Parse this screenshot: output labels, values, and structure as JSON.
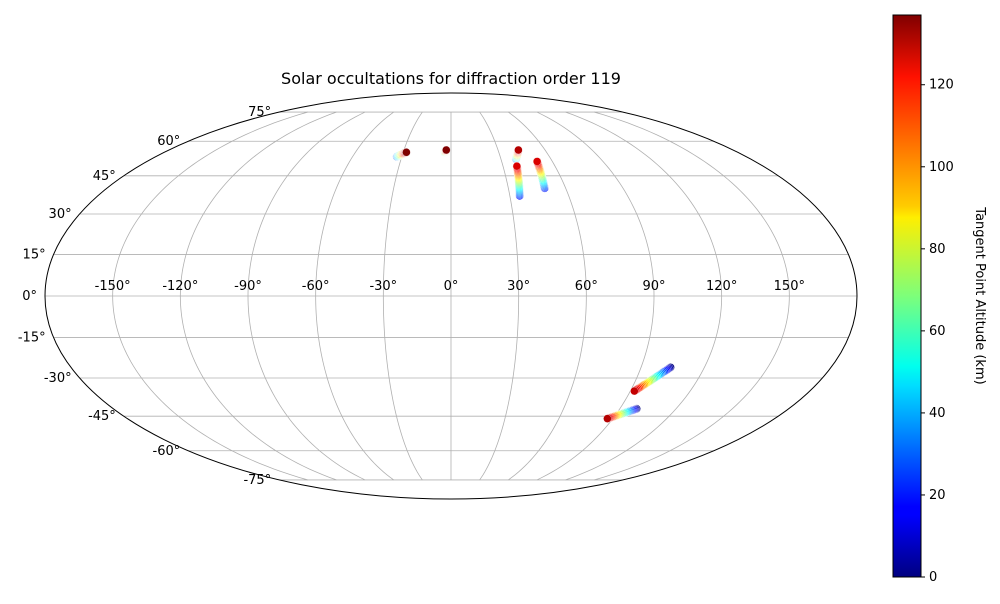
{
  "chart_data": {
    "type": "scatter",
    "projection": "mollweide",
    "title": "Solar occultations for diffraction order 119",
    "xlabel": "",
    "ylabel": "",
    "grid": true,
    "longitude_ticks": [
      -150,
      -120,
      -90,
      -60,
      -30,
      0,
      30,
      60,
      90,
      120,
      150
    ],
    "longitude_tick_labels": [
      "-150°",
      "-120°",
      "-90°",
      "-60°",
      "-30°",
      "0°",
      "30°",
      "60°",
      "90°",
      "120°",
      "150°"
    ],
    "latitude_ticks": [
      -75,
      -60,
      -45,
      -30,
      -15,
      0,
      15,
      30,
      45,
      60,
      75
    ],
    "latitude_tick_labels": [
      "-75°",
      "-60°",
      "-45°",
      "-30°",
      "-15°",
      "0°",
      "15°",
      "30°",
      "45°",
      "60°",
      "75°"
    ],
    "xlim": [
      -180,
      180
    ],
    "ylim": [
      -90,
      90
    ],
    "colormap": "jet",
    "colorbar": {
      "label": "Tangent Point Altitude (km)",
      "range": [
        0,
        137
      ],
      "ticks": [
        0,
        20,
        40,
        60,
        80,
        100,
        120
      ],
      "tick_labels": [
        "0",
        "20",
        "40",
        "60",
        "80",
        "100",
        "120"
      ],
      "placement": "right"
    },
    "series": [
      {
        "lon_start": -33,
        "lat_start": 53,
        "lon_end": -28,
        "lat_end": 55,
        "alt_start": 30,
        "alt_end": 137
      },
      {
        "lon_start": -4,
        "lat_start": 55,
        "lon_end": -3,
        "lat_end": 56,
        "alt_start": 50,
        "alt_end": 137
      },
      {
        "lon_start": 39,
        "lat_start": 52,
        "lon_end": 43,
        "lat_end": 56,
        "alt_start": 30,
        "alt_end": 130
      },
      {
        "lon_start": 35,
        "lat_start": 37,
        "lon_end": 38,
        "lat_end": 49,
        "alt_start": 20,
        "alt_end": 125
      },
      {
        "lon_start": 49,
        "lat_start": 40,
        "lon_end": 51,
        "lat_end": 51,
        "alt_start": 20,
        "alt_end": 125
      },
      {
        "lon_start": 104,
        "lat_start": -26,
        "lon_end": 92,
        "lat_end": -35,
        "alt_start": 0,
        "alt_end": 128
      },
      {
        "lon_start": 99,
        "lat_start": -42,
        "lon_end": 87,
        "lat_end": -46,
        "alt_start": 0,
        "alt_end": 130
      }
    ]
  }
}
